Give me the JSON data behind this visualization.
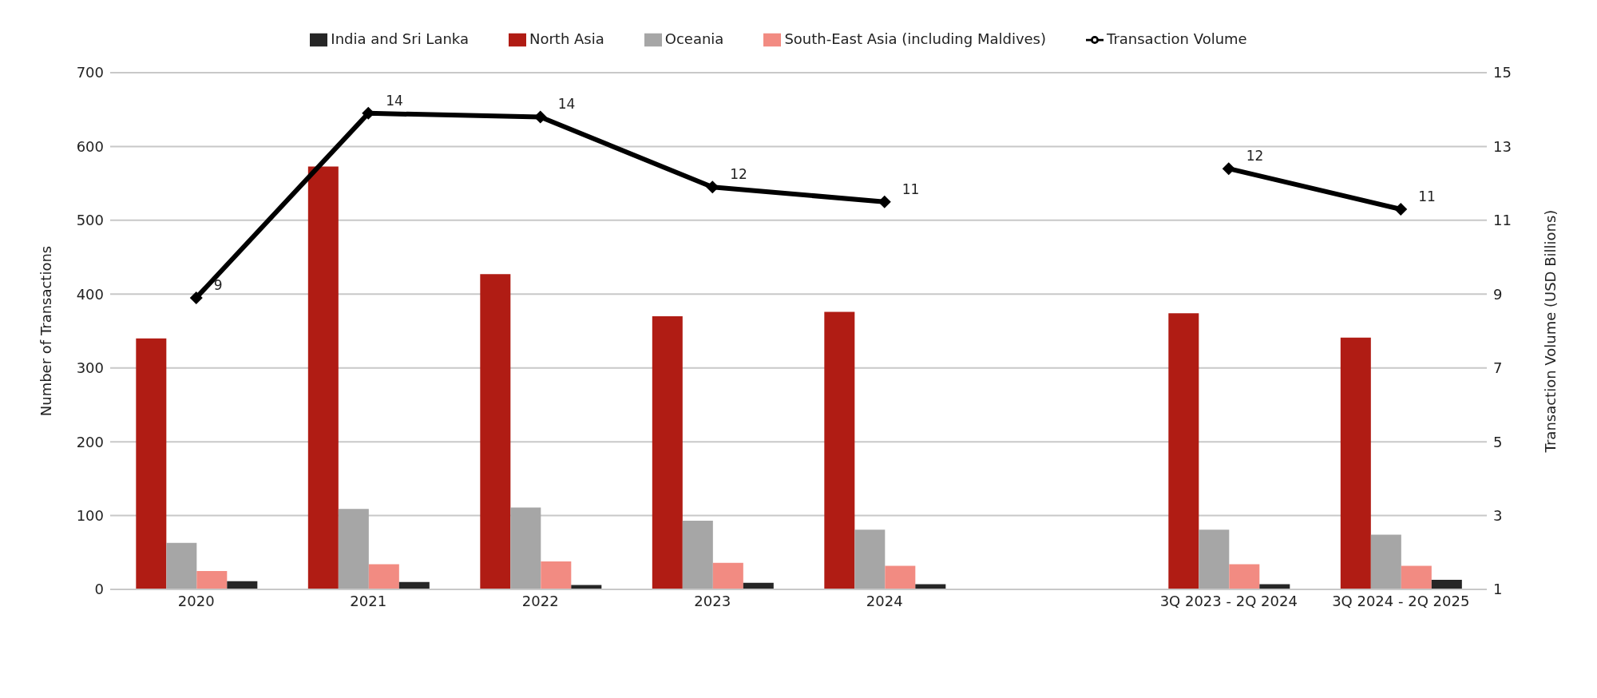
{
  "chart_data": {
    "type": "bar",
    "categories": [
      "2020",
      "2021",
      "2022",
      "2023",
      "2024",
      null,
      "3Q 2023 - 2Q 2024",
      "3Q 2024 - 2Q 2025"
    ],
    "ylabel": "Number of Transactions",
    "y2label": "Transaction Volume (USD Billions)",
    "ylim": [
      0,
      700
    ],
    "yticks": [
      0,
      100,
      200,
      300,
      400,
      500,
      600,
      700
    ],
    "y2lim": [
      1,
      15
    ],
    "y2ticks": [
      1,
      3,
      5,
      7,
      9,
      11,
      13,
      15
    ],
    "grid": "y",
    "legend": "top",
    "series": [
      {
        "name": "North Asia",
        "color": "#b01c14",
        "values": [
          340,
          573,
          427,
          370,
          376,
          null,
          374,
          341
        ]
      },
      {
        "name": "Oceania",
        "color": "#a6a6a6",
        "values": [
          63,
          109,
          111,
          93,
          81,
          null,
          81,
          74
        ]
      },
      {
        "name": "South-East Asia (including Maldives)",
        "color": "#f28b82",
        "values": [
          25,
          34,
          38,
          36,
          32,
          null,
          34,
          32
        ]
      },
      {
        "name": "India and Sri Lanka",
        "color": "#262626",
        "values": [
          11,
          10,
          6,
          9,
          7,
          null,
          7,
          13
        ]
      },
      {
        "name": "Transaction Volume",
        "type": "line",
        "axis": "y2",
        "color": "#000000",
        "marker": "diamond",
        "values": [
          8.9,
          13.9,
          13.8,
          11.9,
          11.5,
          null,
          12.4,
          11.3
        ],
        "value_labels": [
          "9",
          "14",
          "14",
          "12",
          "11",
          null,
          "12",
          "11"
        ]
      }
    ]
  }
}
